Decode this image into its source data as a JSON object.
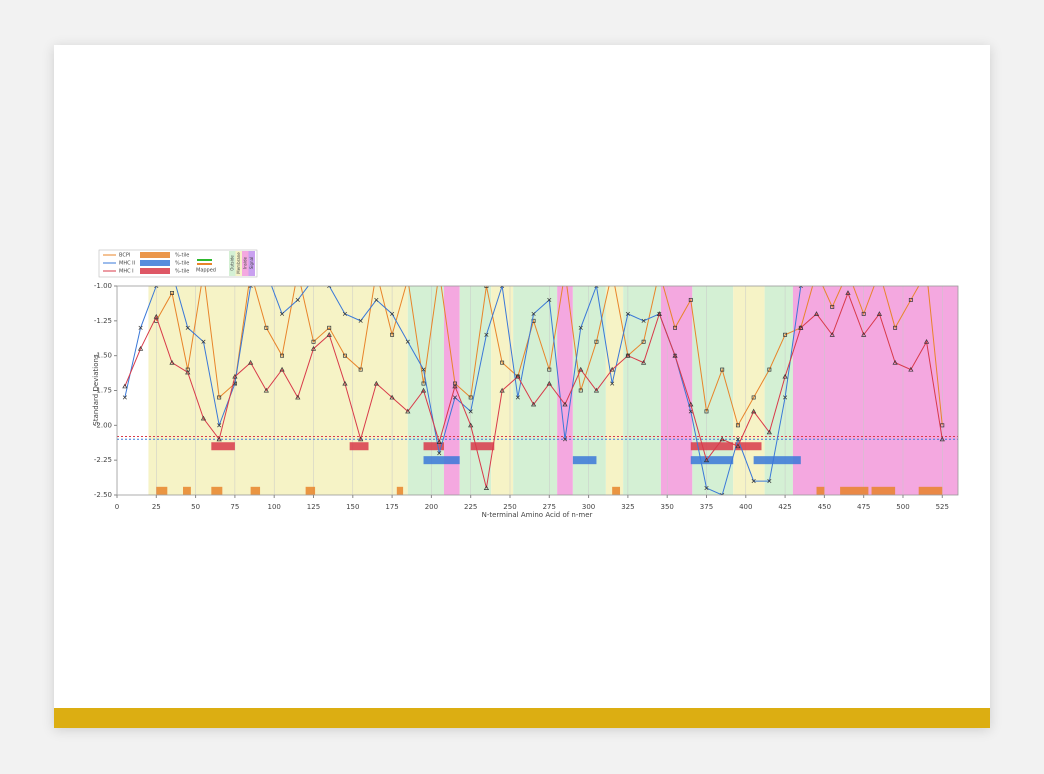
{
  "chart_data": {
    "type": "line",
    "x_label": "N-terminal Amino Acid of n-mer",
    "y_label": "Standard Deviations",
    "xlim": [
      0,
      535
    ],
    "ylim": [
      -1,
      -2.5
    ],
    "xticks": [
      0,
      25,
      50,
      75,
      100,
      125,
      150,
      175,
      200,
      225,
      250,
      275,
      300,
      325,
      350,
      375,
      400,
      425,
      450,
      475,
      500,
      525
    ],
    "yticks": [
      {
        "value": -1,
        "label": "-1.00"
      },
      {
        "value": -1.25,
        "label": "-1.25"
      },
      {
        "value": -1.5,
        "label": "-1.50"
      },
      {
        "value": -1.75,
        "label": "-1.75"
      },
      {
        "value": -2,
        "label": "-2.00"
      },
      {
        "value": -2.25,
        "label": "-2.25"
      },
      {
        "value": -2.5,
        "label": "-2.50"
      }
    ],
    "x": [
      5,
      15,
      25,
      35,
      45,
      55,
      65,
      75,
      85,
      95,
      105,
      115,
      125,
      135,
      145,
      155,
      165,
      175,
      185,
      195,
      205,
      215,
      225,
      235,
      245,
      255,
      265,
      275,
      285,
      295,
      305,
      315,
      325,
      335,
      345,
      355,
      365,
      375,
      385,
      395,
      405,
      415,
      425,
      435,
      445,
      455,
      465,
      475,
      485,
      495,
      505,
      515,
      525
    ],
    "series": [
      {
        "name": "BCPI",
        "color": "#e8842a",
        "marker": "square",
        "percentile_label": "%-tile",
        "values": [
          null,
          null,
          -1.25,
          -1.05,
          -1.6,
          -0.9,
          -1.8,
          -1.7,
          -0.9,
          -1.3,
          -1.5,
          -0.9,
          -1.4,
          -1.3,
          -1.5,
          -1.6,
          -0.9,
          -1.35,
          -0.95,
          -1.7,
          -0.9,
          -1.7,
          -1.8,
          -1.0,
          -1.55,
          -1.65,
          -1.25,
          -1.6,
          -0.9,
          -1.75,
          -1.4,
          -0.9,
          -1.5,
          -1.4,
          -0.9,
          -1.3,
          -1.1,
          -1.9,
          -1.6,
          -2.0,
          -1.8,
          -1.6,
          -1.35,
          -1.3,
          -0.9,
          -1.15,
          -0.9,
          -1.2,
          -0.9,
          -1.3,
          -1.1,
          -0.9,
          -2.0
        ]
      },
      {
        "name": "MHC II",
        "color": "#3a78d8",
        "marker": "x",
        "percentile_label": "%-tile",
        "values": [
          -1.8,
          -1.3,
          -1.0,
          -0.9,
          -1.3,
          -1.4,
          -2.0,
          -1.7,
          -1.0,
          -0.9,
          -1.2,
          -1.1,
          -0.95,
          -1.0,
          -1.2,
          -1.25,
          -1.1,
          -1.2,
          -1.4,
          -1.6,
          -2.2,
          -1.8,
          -1.9,
          -1.35,
          -1.0,
          -1.8,
          -1.2,
          -1.1,
          -2.1,
          -1.3,
          -1.0,
          -1.7,
          -1.2,
          -1.25,
          -1.2,
          -1.5,
          -1.9,
          -2.45,
          -2.5,
          -2.1,
          -2.4,
          -2.4,
          -1.8,
          -1.0,
          -0.9,
          -0.9,
          -0.9,
          -0.9,
          -0.9,
          -0.9,
          -0.9,
          -0.9,
          -0.9
        ]
      },
      {
        "name": "MHC I",
        "color": "#d83a4a",
        "marker": "triangle",
        "percentile_label": "%-tile",
        "values": [
          -1.72,
          -1.45,
          -1.22,
          -1.55,
          -1.62,
          -1.95,
          -2.1,
          -1.65,
          -1.55,
          -1.75,
          -1.6,
          -1.8,
          -1.45,
          -1.35,
          -1.7,
          -2.1,
          -1.7,
          -1.8,
          -1.9,
          -1.75,
          -2.12,
          -1.72,
          -2.0,
          -2.45,
          -1.75,
          -1.65,
          -1.85,
          -1.7,
          -1.85,
          -1.6,
          -1.75,
          -1.6,
          -1.5,
          -1.55,
          -1.2,
          -1.5,
          -1.85,
          -2.25,
          -2.1,
          -2.15,
          -1.9,
          -2.05,
          -1.65,
          -1.3,
          -1.2,
          -1.35,
          -1.05,
          -1.35,
          -1.2,
          -1.55,
          -1.6,
          -1.4,
          -2.1
        ]
      }
    ],
    "thresholds": [
      {
        "value": -2.08,
        "color": "#d83a4a"
      },
      {
        "value": -2.1,
        "color": "#3a78d8"
      }
    ],
    "hits": [
      {
        "series": 0,
        "y": -2.47,
        "ranges": [
          [
            25,
            32
          ],
          [
            42,
            47
          ],
          [
            60,
            67
          ],
          [
            85,
            91
          ],
          [
            120,
            126
          ],
          [
            178,
            182
          ],
          [
            315,
            320
          ],
          [
            445,
            450
          ],
          [
            460,
            478
          ],
          [
            480,
            495
          ],
          [
            510,
            525
          ]
        ]
      },
      {
        "series": 2,
        "y": -2.15,
        "ranges": [
          [
            60,
            75
          ],
          [
            148,
            160
          ],
          [
            195,
            208
          ],
          [
            225,
            240
          ],
          [
            365,
            392
          ],
          [
            393,
            410
          ]
        ]
      },
      {
        "series": 1,
        "y": -2.25,
        "ranges": [
          [
            195,
            218
          ],
          [
            290,
            305
          ],
          [
            365,
            392
          ],
          [
            405,
            435
          ]
        ]
      }
    ],
    "mapped_label": "Mapped",
    "region_legend": [
      {
        "label": "Outside",
        "color": "#d4f0d4"
      },
      {
        "label": "Membrane",
        "color": "#f6f3c6"
      },
      {
        "label": "Inside",
        "color": "#f4a8e0"
      },
      {
        "label": "Signal",
        "color": "#c9a0f0"
      }
    ],
    "regions": [
      {
        "start": 20,
        "end": 185,
        "color": "#f6f3c6"
      },
      {
        "start": 185,
        "end": 208,
        "color": "#d4f0d4"
      },
      {
        "start": 208,
        "end": 218,
        "color": "#f4a8e0"
      },
      {
        "start": 218,
        "end": 238,
        "color": "#d4f0d4"
      },
      {
        "start": 238,
        "end": 252,
        "color": "#f6f3c6"
      },
      {
        "start": 252,
        "end": 280,
        "color": "#d4f0d4"
      },
      {
        "start": 280,
        "end": 290,
        "color": "#f4a8e0"
      },
      {
        "start": 290,
        "end": 311,
        "color": "#d4f0d4"
      },
      {
        "start": 311,
        "end": 322,
        "color": "#f6f3c6"
      },
      {
        "start": 322,
        "end": 346,
        "color": "#d4f0d4"
      },
      {
        "start": 346,
        "end": 366,
        "color": "#f4a8e0"
      },
      {
        "start": 366,
        "end": 392,
        "color": "#d4f0d4"
      },
      {
        "start": 392,
        "end": 412,
        "color": "#f6f3c6"
      },
      {
        "start": 412,
        "end": 430,
        "color": "#d4f0d4"
      },
      {
        "start": 430,
        "end": 535,
        "color": "#f4a8e0"
      }
    ]
  }
}
